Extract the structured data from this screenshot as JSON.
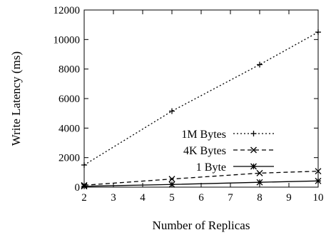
{
  "chart_data": {
    "type": "line",
    "title": "",
    "xlabel": "Number of Replicas",
    "ylabel": "Write Latency (ms)",
    "x": [
      2,
      5,
      8,
      10
    ],
    "xlim": [
      2,
      10
    ],
    "ylim": [
      0,
      12000
    ],
    "xticks": [
      "2",
      "3",
      "4",
      "5",
      "6",
      "7",
      "8",
      "9",
      "10"
    ],
    "yticks": [
      "0",
      "2000",
      "4000",
      "6000",
      "8000",
      "10000",
      "12000"
    ],
    "grid": false,
    "legend_position": "center-right",
    "series": [
      {
        "name": "1M Bytes",
        "values": [
          1500,
          5150,
          8300,
          10500
        ],
        "line_style": "dotted",
        "marker": "plus",
        "color": "#000000"
      },
      {
        "name": "4K Bytes",
        "values": [
          130,
          550,
          950,
          1080
        ],
        "line_style": "dashed",
        "marker": "cross",
        "color": "#000000"
      },
      {
        "name": "1 Byte",
        "values": [
          60,
          180,
          330,
          420
        ],
        "line_style": "solid",
        "marker": "asterisk",
        "color": "#000000"
      }
    ]
  }
}
